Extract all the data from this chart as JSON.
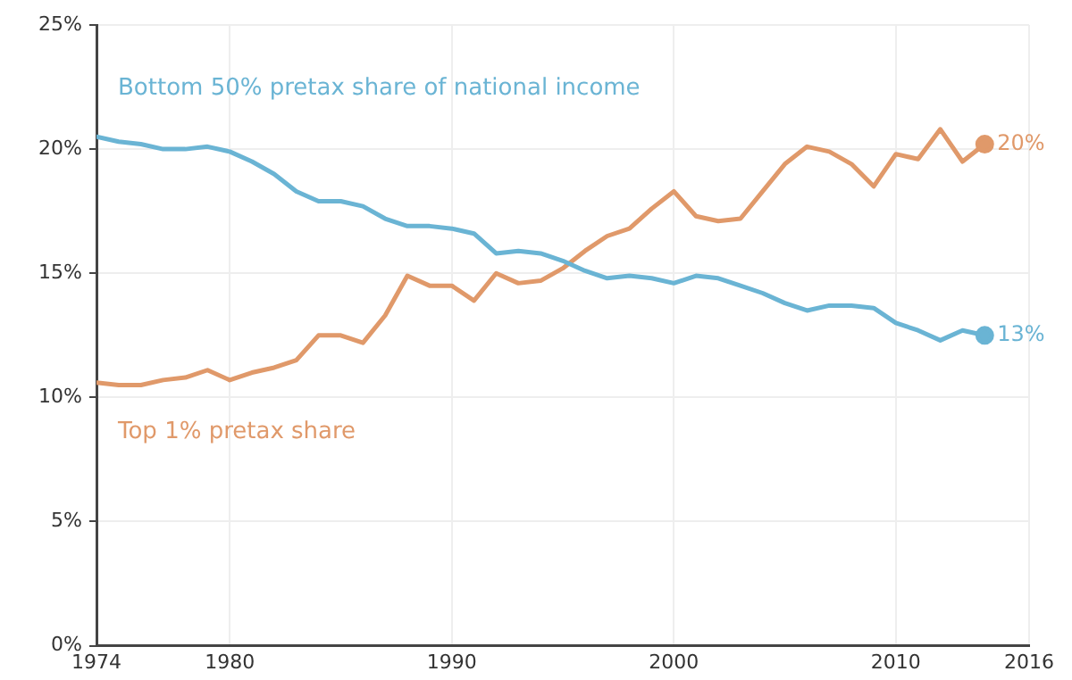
{
  "chart_data": {
    "type": "line",
    "x": [
      1974,
      1975,
      1976,
      1977,
      1978,
      1979,
      1980,
      1981,
      1982,
      1983,
      1984,
      1985,
      1986,
      1987,
      1988,
      1989,
      1990,
      1991,
      1992,
      1993,
      1994,
      1995,
      1996,
      1997,
      1998,
      1999,
      2000,
      2001,
      2002,
      2003,
      2004,
      2005,
      2006,
      2007,
      2008,
      2009,
      2010,
      2011,
      2012,
      2013,
      2014
    ],
    "series": [
      {
        "name": "Bottom 50% pretax share of national income",
        "color": "#6ab4d4",
        "values": [
          20.5,
          20.3,
          20.2,
          20.0,
          20.0,
          20.1,
          19.9,
          19.5,
          19.0,
          18.3,
          17.9,
          17.9,
          17.7,
          17.2,
          16.9,
          16.9,
          16.8,
          16.6,
          15.8,
          15.9,
          15.8,
          15.5,
          15.1,
          14.8,
          14.9,
          14.8,
          14.6,
          14.9,
          14.8,
          14.5,
          14.2,
          13.8,
          13.5,
          13.7,
          13.7,
          13.6,
          13.0,
          12.7,
          12.3,
          12.7,
          12.5
        ],
        "value_labels": [
          null,
          null,
          null,
          null,
          null,
          null,
          null,
          null,
          null,
          null,
          null,
          null,
          null,
          null,
          null,
          null,
          null,
          null,
          null,
          null,
          null,
          null,
          null,
          null,
          null,
          null,
          null,
          null,
          null,
          null,
          null,
          null,
          null,
          null,
          null,
          null,
          null,
          null,
          null,
          null,
          "13%"
        ]
      },
      {
        "name": "Top 1% pretax share",
        "color": "#e0996a",
        "values": [
          10.6,
          10.5,
          10.5,
          10.7,
          10.8,
          11.1,
          10.7,
          11.0,
          11.2,
          11.5,
          12.5,
          12.5,
          12.2,
          13.3,
          14.9,
          14.5,
          14.5,
          13.9,
          15.0,
          14.6,
          14.7,
          15.2,
          15.9,
          16.5,
          16.8,
          17.6,
          18.3,
          17.3,
          17.1,
          17.2,
          18.3,
          19.4,
          20.1,
          19.9,
          19.4,
          18.5,
          19.8,
          19.6,
          20.8,
          19.5,
          20.2
        ],
        "value_labels": [
          null,
          null,
          null,
          null,
          null,
          null,
          null,
          null,
          null,
          null,
          null,
          null,
          null,
          null,
          null,
          null,
          null,
          null,
          null,
          null,
          null,
          null,
          null,
          null,
          null,
          null,
          null,
          null,
          null,
          null,
          null,
          null,
          null,
          null,
          null,
          null,
          null,
          null,
          null,
          null,
          "20%"
        ]
      }
    ],
    "xlim": [
      1974,
      2016
    ],
    "xticks": [
      1974,
      1980,
      1990,
      2000,
      2010,
      2016
    ],
    "ylim": [
      0,
      25
    ],
    "yticks": [
      {
        "value": 0,
        "label": "0%"
      },
      {
        "value": 5,
        "label": "5%"
      },
      {
        "value": 10,
        "label": "10%"
      },
      {
        "value": 15,
        "label": "15%"
      },
      {
        "value": 20,
        "label": "20%"
      },
      {
        "value": 25,
        "label": "25%"
      }
    ],
    "grid": true,
    "legend": false,
    "marker": "none",
    "line_style": "solid"
  }
}
